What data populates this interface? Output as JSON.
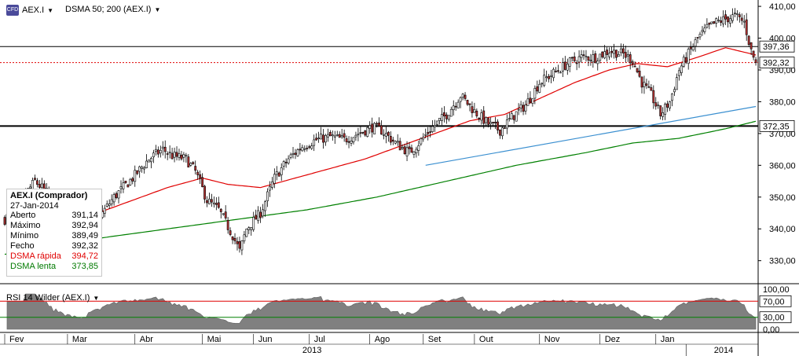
{
  "header": {
    "symbol": "AEX.I",
    "indicator": "DSMA 50; 200 (AEX.I)"
  },
  "legend": {
    "title": "AEX.I (Comprador)",
    "date": "27-Jan-2014",
    "rows": [
      {
        "label": "Aberto",
        "value": "391,14",
        "cls": ""
      },
      {
        "label": "Máximo",
        "value": "392,94",
        "cls": ""
      },
      {
        "label": "Mínimo",
        "value": "389,49",
        "cls": ""
      },
      {
        "label": "Fecho",
        "value": "392,32",
        "cls": ""
      },
      {
        "label": "DSMA rápida",
        "value": "394,72",
        "cls": "red"
      },
      {
        "label": "DSMA lenta",
        "value": "373,85",
        "cls": "green"
      }
    ]
  },
  "rsi": {
    "label": "RSI 14 Wilder (AEX.I)"
  },
  "colors": {
    "up": "#ffffff",
    "down": "#b03030",
    "wick": "#000000",
    "fast": "#e00000",
    "slow": "#008000",
    "trend": "#3a8fd0",
    "rsi_fill": "#808080",
    "rsi_band_top": "#e00000",
    "rsi_band_bottom": "#008000"
  },
  "chart_data": [
    {
      "type": "candlestick",
      "y_ticks": [
        "410,00",
        "400,00",
        "390,00",
        "380,00",
        "370,00",
        "360,00",
        "350,00",
        "340,00",
        "330,00"
      ],
      "ylim": [
        323,
        412
      ],
      "months": [
        "Fev",
        "Mar",
        "Abr",
        "Mai",
        "Jun",
        "Jul",
        "Ago",
        "Set",
        "Out",
        "Nov",
        "Dez",
        "Jan"
      ],
      "year_labels": [
        "2013",
        "2014"
      ],
      "horizontal_lines": [
        397.36,
        372.35
      ],
      "dotted_line": 392.32,
      "labels": [
        "397,36",
        "392,32",
        "372,35"
      ],
      "close_anchors": [
        [
          0,
          343
        ],
        [
          6,
          348
        ],
        [
          13,
          355
        ],
        [
          20,
          350
        ],
        [
          28,
          342
        ],
        [
          34,
          338
        ],
        [
          40,
          343
        ],
        [
          47,
          350
        ],
        [
          55,
          356
        ],
        [
          62,
          362
        ],
        [
          68,
          365
        ],
        [
          72,
          363
        ],
        [
          78,
          362
        ],
        [
          82,
          358
        ],
        [
          87,
          349
        ],
        [
          92,
          346
        ],
        [
          98,
          338
        ],
        [
          101,
          333
        ],
        [
          104,
          340
        ],
        [
          110,
          345
        ],
        [
          116,
          356
        ],
        [
          122,
          362
        ],
        [
          128,
          366
        ],
        [
          134,
          368
        ],
        [
          140,
          369
        ],
        [
          146,
          368
        ],
        [
          152,
          370
        ],
        [
          158,
          372
        ],
        [
          162,
          371
        ],
        [
          168,
          367
        ],
        [
          174,
          364
        ],
        [
          178,
          367
        ],
        [
          184,
          372
        ],
        [
          190,
          376
        ],
        [
          196,
          382
        ],
        [
          202,
          377
        ],
        [
          208,
          373
        ],
        [
          213,
          371
        ],
        [
          218,
          375
        ],
        [
          224,
          379
        ],
        [
          230,
          386
        ],
        [
          236,
          389
        ],
        [
          242,
          392
        ],
        [
          248,
          394
        ],
        [
          254,
          394
        ],
        [
          260,
          396
        ],
        [
          266,
          395
        ],
        [
          270,
          393
        ],
        [
          274,
          386
        ],
        [
          278,
          382
        ],
        [
          282,
          376
        ],
        [
          286,
          380
        ],
        [
          290,
          390
        ],
        [
          294,
          395
        ],
        [
          298,
          400
        ],
        [
          302,
          403
        ],
        [
          306,
          405
        ],
        [
          310,
          406
        ],
        [
          314,
          407
        ],
        [
          318,
          405
        ],
        [
          321,
          396
        ],
        [
          323,
          392
        ]
      ],
      "fast_ma_anchors": [
        [
          28,
          345
        ],
        [
          40,
          345
        ],
        [
          55,
          349
        ],
        [
          70,
          353
        ],
        [
          85,
          356
        ],
        [
          96,
          354
        ],
        [
          110,
          353
        ],
        [
          125,
          356
        ],
        [
          140,
          359
        ],
        [
          155,
          362
        ],
        [
          170,
          366
        ],
        [
          185,
          370
        ],
        [
          200,
          374
        ],
        [
          215,
          376
        ],
        [
          230,
          381
        ],
        [
          245,
          386
        ],
        [
          260,
          390
        ],
        [
          272,
          392
        ],
        [
          285,
          391
        ],
        [
          298,
          394
        ],
        [
          310,
          397
        ],
        [
          323,
          394.7
        ]
      ],
      "slow_ma_anchors": [
        [
          0,
          332
        ],
        [
          40,
          337
        ],
        [
          80,
          341
        ],
        [
          100,
          343
        ],
        [
          130,
          346
        ],
        [
          160,
          350
        ],
        [
          190,
          355
        ],
        [
          220,
          360
        ],
        [
          250,
          364
        ],
        [
          270,
          367
        ],
        [
          290,
          368.5
        ],
        [
          310,
          371.5
        ],
        [
          323,
          373.85
        ]
      ],
      "trend_line": [
        [
          181,
          360
        ],
        [
          323,
          378.5
        ]
      ]
    },
    {
      "type": "area",
      "name": "RSI 14 Wilder",
      "y_ticks": [
        "100,00",
        "70,00",
        "30,00",
        "0,00"
      ],
      "ylim": [
        0,
        100
      ],
      "bands": [
        70,
        30
      ]
    }
  ]
}
